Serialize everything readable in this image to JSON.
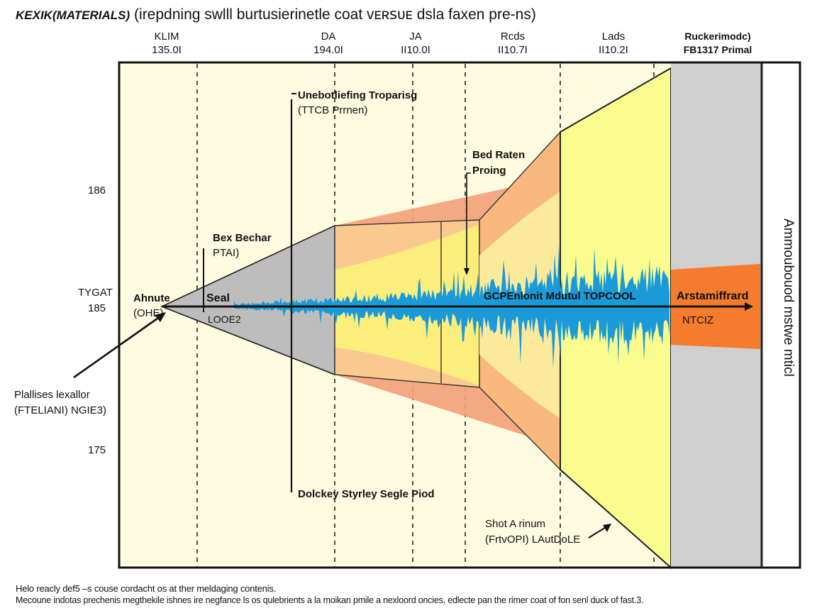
{
  "title": {
    "prefix": "KEXIK(MATERIALS)",
    "main": "(irepdning swlll burtusierinetle coat ᴠᴇʀꜱᴜᴇ dsla faxen pre-ns)"
  },
  "columns": [
    {
      "name": "KLIM",
      "value": "135.0I"
    },
    {
      "name": "DA",
      "value": "194.0I"
    },
    {
      "name": "JA",
      "value": "II10.0I"
    },
    {
      "name": "Rcds",
      "value": "II10.7I"
    },
    {
      "name": "Lads",
      "value": "II10.2I"
    },
    {
      "name": "Ruckerimodc)",
      "value": "FB1317 Primal"
    }
  ],
  "y_axis": {
    "ticks": [
      "186",
      "185",
      "175"
    ],
    "prefix_label": "TYGAT"
  },
  "labels": {
    "unebotliefing": "Unebotliefing Troparisg",
    "ttcb": "(TTCB Prrnen)",
    "bed_raten": "Bed Raten",
    "proing": "Proing",
    "bex_bechar": "Bex Bechar",
    "bex_sub": "PTAI)",
    "ahnute": "Ahnute",
    "ahnute_sub": "(OHE)",
    "seal": "Seal",
    "seal_sub": "LOOE2",
    "gcp": "GCPEnlonit Mdutul TOPCOOL",
    "arstamif": "Arstamiffrard",
    "ntciz": "NTCIZ",
    "plallises": "Plallises lexallor",
    "plallises_sub": "(FTELIANI) NGIE3)",
    "dolckey": "Dolckey Styrley Segle Piod",
    "shot": "Shot A rinum",
    "shot_sub": "(FrtvOPI) LAutDoLE",
    "vertical": "Ammoubouod mstwe mticl"
  },
  "footnote": {
    "line1": "Helo reacly def5 –s couse cordacht os at ther meldaging contenis.",
    "line2": "Mecoune indotas prechenis megthekile ishnes ire negfance ls os qulebrients a la moikan pmile a nexloord oncies, edlecte pan the rimer coat of fon senl duck of fast.3."
  },
  "colors": {
    "panel_bg": "#fdfbe0",
    "gray_band": "#cfcfcf",
    "gray_cone": "#bdbdbd",
    "salmon": "#f4a078",
    "peach": "#f9c990",
    "yellow": "#fbf57a",
    "bright_yellow": "#fafc8e",
    "wave_blue": "#1a9ad8",
    "orange_band": "#f47c2c"
  }
}
